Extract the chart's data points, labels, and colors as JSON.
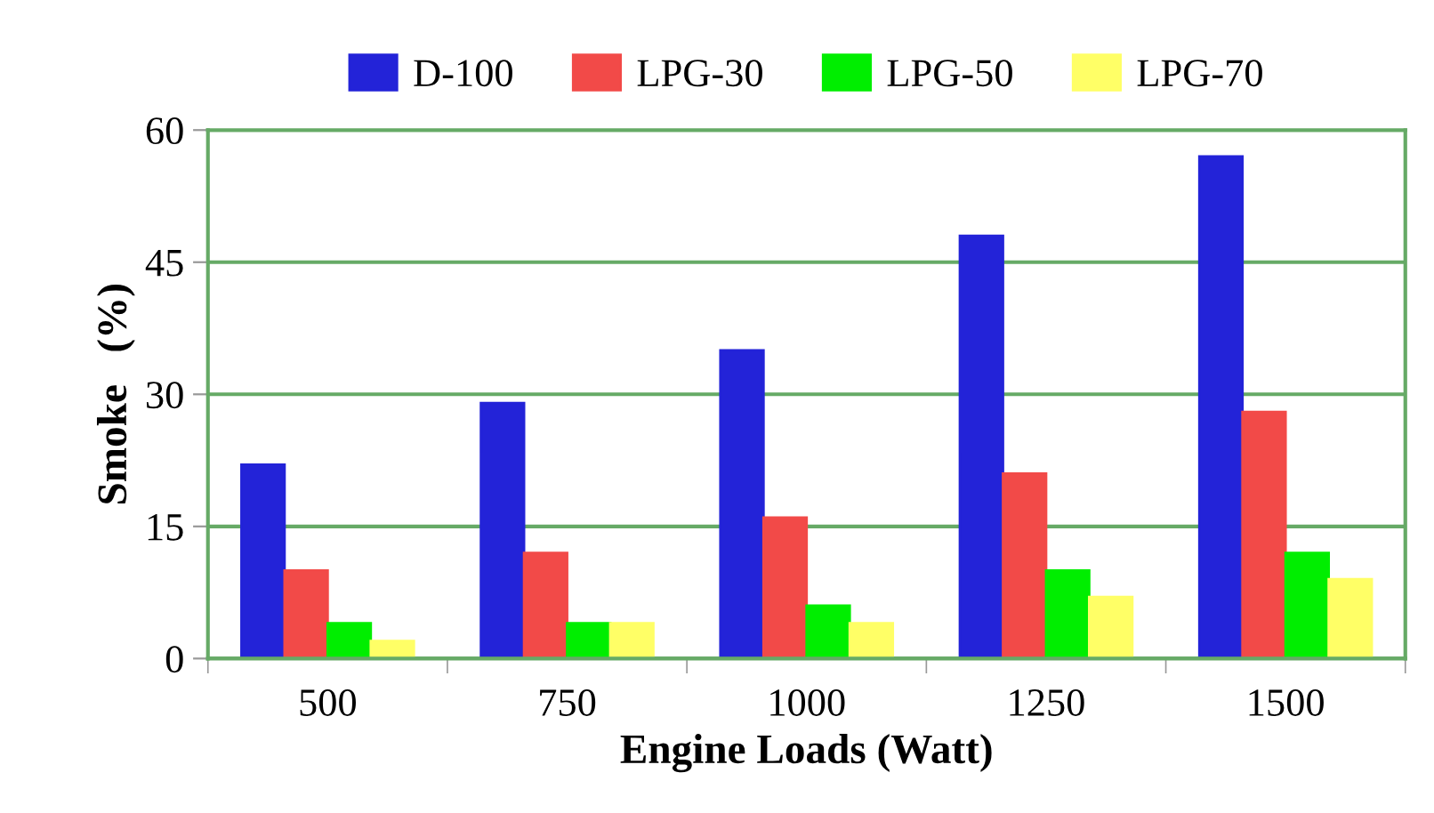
{
  "chart_data": {
    "type": "bar",
    "xlabel": "Engine Loads (Watt)",
    "ylabel": "Smoke   (%)",
    "categories": [
      "500",
      "750",
      "1000",
      "1250",
      "1500"
    ],
    "series": [
      {
        "name": "D-100",
        "color": "#2323d8",
        "values": [
          22,
          29,
          35,
          48,
          57
        ]
      },
      {
        "name": "LPG-30",
        "color": "#f24a48",
        "values": [
          10,
          12,
          16,
          21,
          28
        ]
      },
      {
        "name": "LPG-50",
        "color": "#00ee00",
        "values": [
          4,
          4,
          6,
          10,
          12
        ]
      },
      {
        "name": "LPG-70",
        "color": "#ffff66",
        "values": [
          2,
          4,
          4,
          7,
          9
        ]
      }
    ],
    "ylim": [
      0,
      60
    ],
    "yticks": [
      0,
      15,
      30,
      45,
      60
    ],
    "grid": "y",
    "legend": "top"
  }
}
